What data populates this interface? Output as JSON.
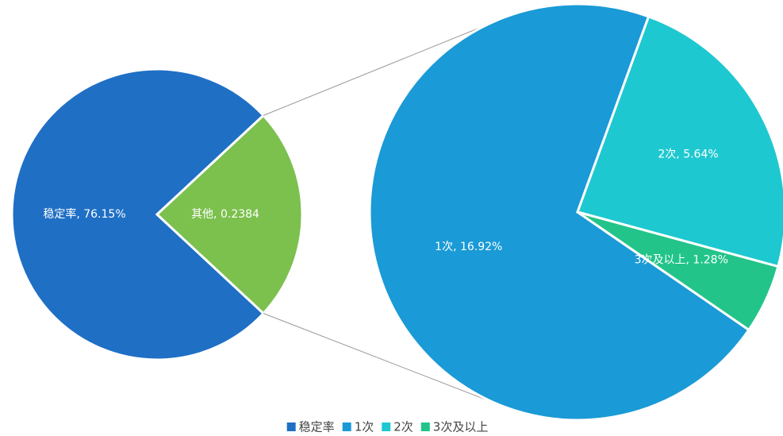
{
  "chart_data": {
    "type": "pie-of-pie",
    "categories": [
      "稳定率",
      "其他"
    ],
    "values": [
      76.15,
      23.84
    ],
    "value_labels": [
      "稳定率, 76.15%",
      "其他, 0.2384"
    ],
    "colors": [
      "#1f6fc5",
      "#7cc04e"
    ],
    "secondary": {
      "categories": [
        "1次",
        "2次",
        "3次及以上"
      ],
      "values": [
        16.92,
        5.64,
        1.28
      ],
      "value_labels": [
        "1次, 16.92%",
        "2次, 5.64%",
        "3次及以上, 1.28%"
      ],
      "colors": [
        "#1a9ad6",
        "#1ec8d0",
        "#22c48a"
      ]
    },
    "legend": "bottom"
  }
}
